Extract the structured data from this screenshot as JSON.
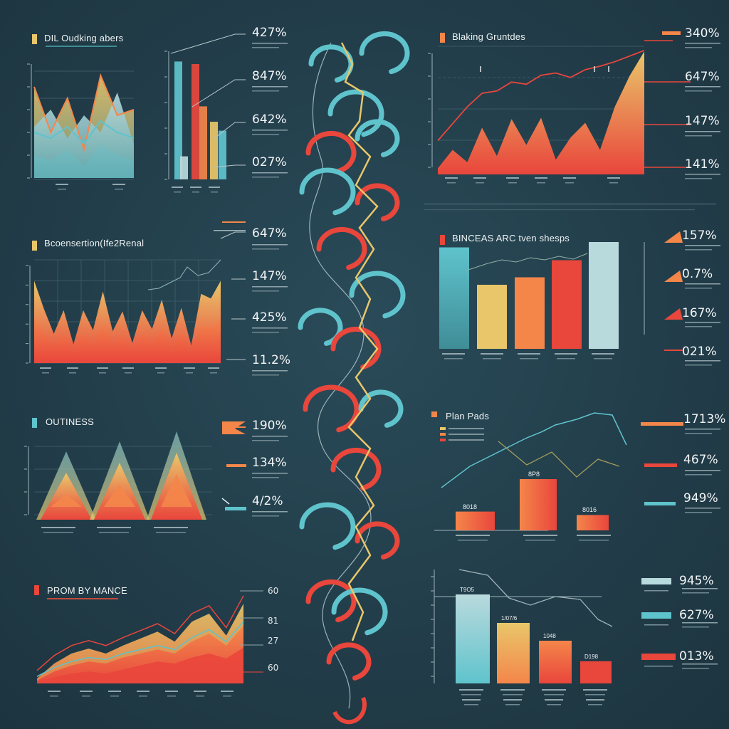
{
  "colors": {
    "background": "#23404d",
    "teal": "#5fc3cc",
    "yellow": "#e9c66a",
    "orange": "#f4864a",
    "red": "#e9463c",
    "pale": "#b9dadd"
  },
  "titles": {
    "t1": "DIL Oudking abers",
    "t2": "Bcoensertion(Ife2Renal",
    "t3": "OUTINESS",
    "t4": "PROM BY MANCE",
    "t5": "Blaking Gruntdes",
    "t6": "BINCEAS ARC tven shesps",
    "t7": "Plan Pads"
  },
  "percents": {
    "a": [
      "427%",
      "847%",
      "642%",
      "027%"
    ],
    "b": [
      "647%",
      "147%",
      "425%",
      "11.2%"
    ],
    "c": [
      "190%",
      "134%",
      "4/2%"
    ],
    "d": [
      "60",
      "81",
      "27",
      "60"
    ],
    "e": [
      "340%",
      "647%",
      "147%",
      "141%"
    ],
    "f": [
      "157%",
      "0.7%",
      "167%",
      "021%"
    ],
    "g": [
      "1713%",
      "467%",
      "949%"
    ],
    "h": [
      "945%",
      "627%",
      "013%"
    ]
  },
  "bar_labels": {
    "plan": [
      "8018",
      "8P8",
      "8016"
    ],
    "bottom": [
      "T9O5",
      "1/07/6",
      "1048",
      "D198"
    ]
  },
  "chart_data": [
    {
      "type": "area",
      "title": "DIL Oudking abers",
      "x": [
        0,
        1,
        2,
        3,
        4,
        5,
        6
      ],
      "series": [
        {
          "values": [
            80,
            40,
            70,
            25,
            90,
            55,
            60
          ]
        },
        {
          "values": [
            45,
            60,
            35,
            55,
            40,
            75,
            30
          ]
        },
        {
          "values": [
            20,
            15,
            25,
            10,
            30,
            20,
            15
          ]
        }
      ]
    },
    {
      "type": "bar",
      "categories": [
        "a",
        "b",
        "c",
        "d",
        "e",
        "f"
      ],
      "values": [
        92,
        18,
        90,
        57,
        45,
        38
      ]
    },
    {
      "type": "area",
      "title": "Bcoensertion(Ife2Renal",
      "x": [
        0,
        1,
        2,
        3,
        4,
        5,
        6,
        7,
        8,
        9,
        10,
        11,
        12,
        13,
        14,
        15,
        16,
        17,
        18,
        19
      ],
      "values": [
        70,
        46,
        25,
        45,
        16,
        45,
        28,
        61,
        27,
        44,
        17,
        45,
        29,
        54,
        21,
        47,
        15,
        59,
        55,
        70
      ]
    },
    {
      "type": "area",
      "title": "OUTINESS",
      "categories": [
        "1",
        "2",
        "3"
      ],
      "values": [
        55,
        64,
        73
      ]
    },
    {
      "type": "area",
      "title": "PROM BY MANCE",
      "x": [
        0,
        1,
        2,
        3,
        4,
        5,
        6,
        7,
        8,
        9,
        10,
        11,
        12
      ],
      "series": [
        {
          "values": [
            5,
            20,
            30,
            35,
            30,
            38,
            45,
            52,
            42,
            62,
            70,
            48,
            80
          ]
        },
        {
          "values": [
            3,
            12,
            18,
            22,
            20,
            26,
            30,
            34,
            30,
            42,
            50,
            38,
            58
          ]
        },
        {
          "values": [
            2,
            6,
            10,
            12,
            10,
            14,
            18,
            22,
            20,
            26,
            30,
            25,
            36
          ]
        }
      ]
    },
    {
      "type": "area",
      "title": "Blaking Gruntdes",
      "x": [
        0,
        1,
        2,
        3,
        4,
        5,
        6,
        7,
        8,
        9,
        10,
        11,
        12,
        13,
        14
      ],
      "values": [
        5,
        20,
        10,
        38,
        15,
        45,
        24,
        46,
        12,
        30,
        42,
        20,
        55,
        80,
        100
      ],
      "line": [
        30,
        45,
        60,
        72,
        74,
        82,
        80,
        88,
        90,
        86,
        93,
        96,
        100,
        105,
        110
      ]
    },
    {
      "type": "bar",
      "title": "BINCEAS ARC tven shesps",
      "categories": [
        "1",
        "2",
        "3",
        "4",
        "5",
        "6"
      ],
      "values": [
        95,
        60,
        67,
        83,
        100,
        0
      ]
    },
    {
      "type": "bar",
      "title": "Plan Pads",
      "categories": [
        "8018",
        "8P8",
        "8016"
      ],
      "values": [
        22,
        60,
        18
      ]
    },
    {
      "type": "bar",
      "categories": [
        "T9O5",
        "1/07/6",
        "1048",
        "D198"
      ],
      "values": [
        100,
        68,
        48,
        25
      ]
    }
  ]
}
